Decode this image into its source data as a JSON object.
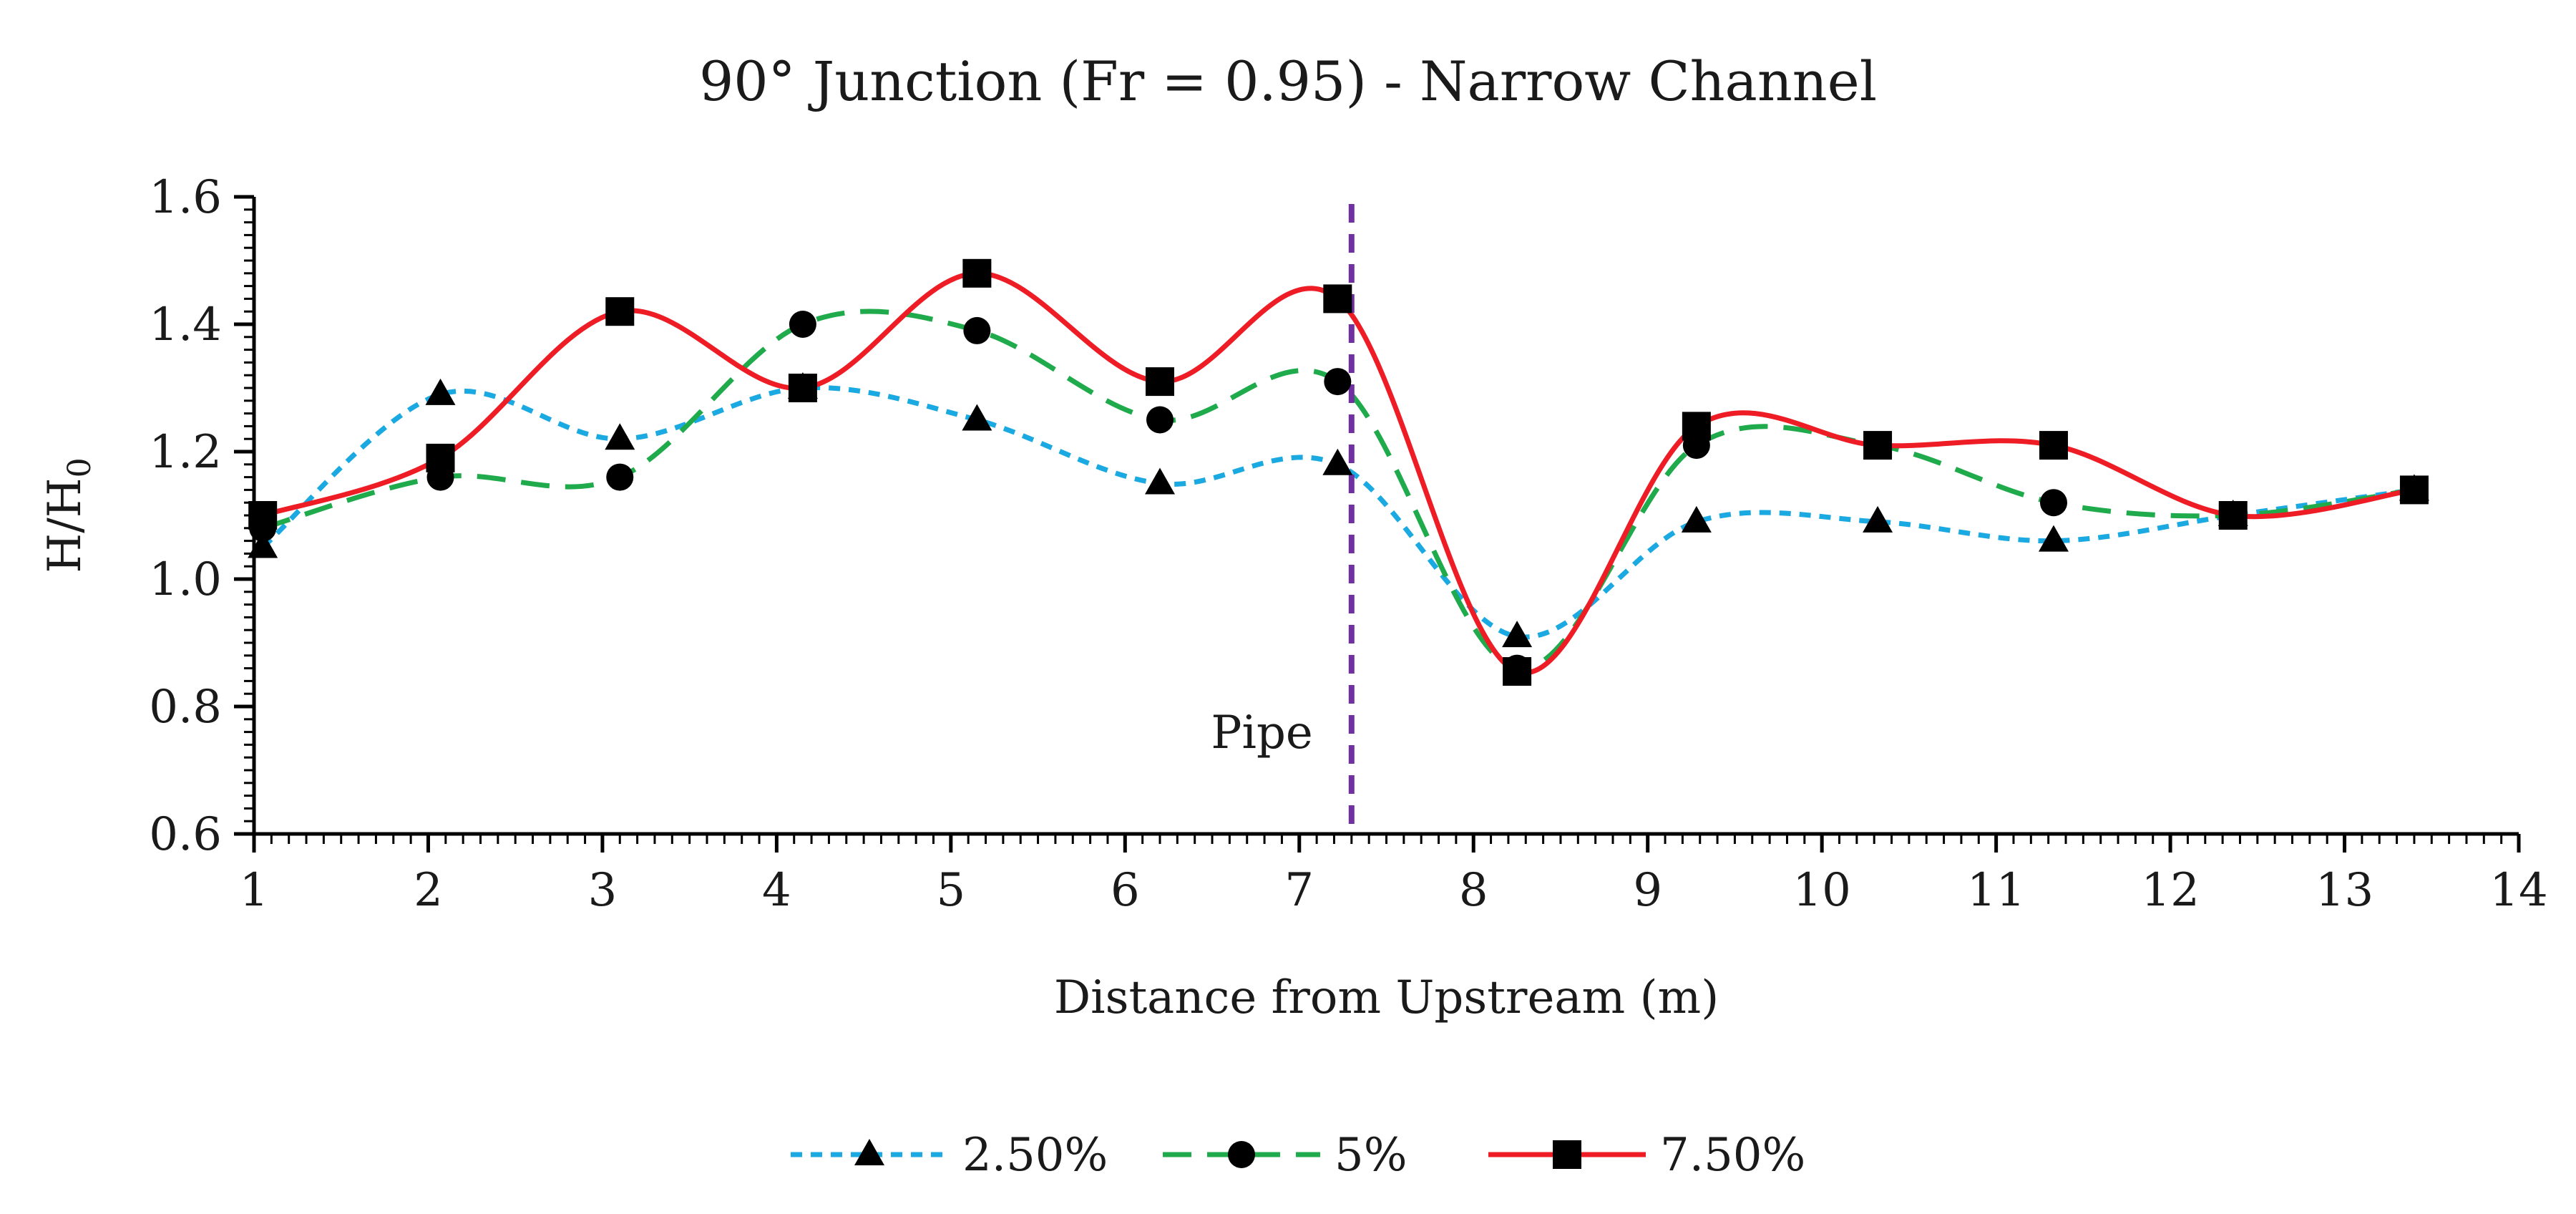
{
  "chart_data": {
    "type": "line",
    "title": "90° Junction (Fr = 0.95) - Narrow Channel",
    "xlabel": "Distance from Upstream (m)",
    "ylabel": "H/H",
    "ylabel_subscript": "0",
    "xlim": [
      1,
      14
    ],
    "ylim": [
      0.6,
      1.6
    ],
    "xticks": [
      "1",
      "2",
      "3",
      "4",
      "5",
      "6",
      "7",
      "8",
      "9",
      "10",
      "11",
      "12",
      "13",
      "14"
    ],
    "yticks": [
      "0.6",
      "0.8",
      "1.0",
      "1.2",
      "1.4",
      "1.6"
    ],
    "grid": false,
    "legend_position": "bottom",
    "series": [
      {
        "name": "2.50%",
        "color": "#1ba9e1",
        "dash": "dotted",
        "marker": "triangle",
        "x": [
          1.05,
          2.07,
          3.1,
          4.15,
          5.15,
          6.2,
          7.22,
          8.25,
          9.28,
          10.32,
          11.33,
          12.36,
          13.4
        ],
        "y": [
          1.05,
          1.29,
          1.22,
          1.3,
          1.25,
          1.15,
          1.18,
          0.91,
          1.09,
          1.09,
          1.06,
          1.1,
          1.14
        ]
      },
      {
        "name": "5%",
        "color": "#1faa4b",
        "dash": "dashed",
        "marker": "circle",
        "x": [
          1.05,
          2.07,
          3.1,
          4.15,
          5.15,
          6.2,
          7.22,
          8.25,
          9.28,
          10.32,
          11.33,
          12.36,
          13.4
        ],
        "y": [
          1.08,
          1.16,
          1.16,
          1.4,
          1.39,
          1.25,
          1.31,
          0.86,
          1.21,
          1.21,
          1.12,
          1.1,
          1.14
        ]
      },
      {
        "name": "7.50%",
        "color": "#ee1c25",
        "dash": "solid",
        "marker": "square",
        "x": [
          1.05,
          2.07,
          3.1,
          4.15,
          5.15,
          6.2,
          7.22,
          8.25,
          9.28,
          10.32,
          11.33,
          12.36,
          13.4
        ],
        "y": [
          1.1,
          1.19,
          1.42,
          1.3,
          1.48,
          1.31,
          1.44,
          0.855,
          1.24,
          1.21,
          1.21,
          1.1,
          1.14
        ]
      }
    ],
    "annotations": [
      {
        "type": "vline",
        "x": 7.3,
        "color": "#7030a0",
        "label": "Pipe"
      }
    ]
  }
}
